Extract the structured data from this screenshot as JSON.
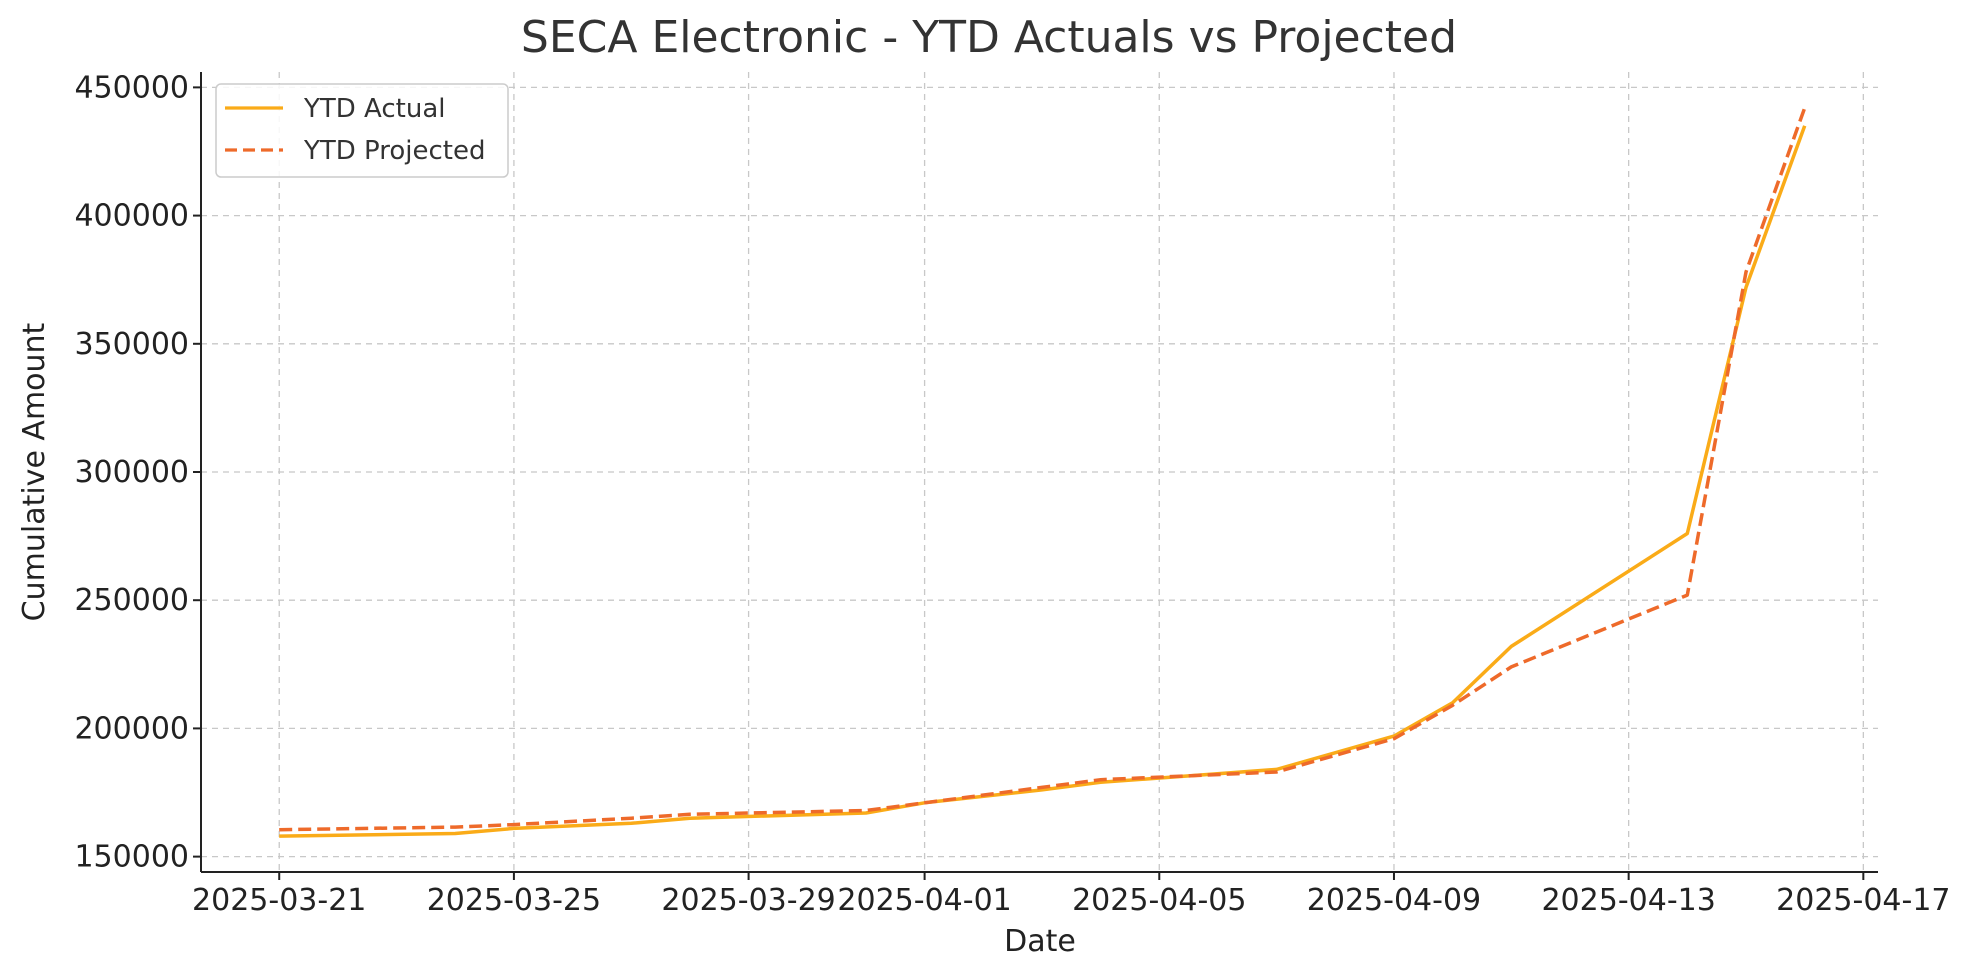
{
  "chart_data": {
    "type": "line",
    "title": "SECA Electronic - YTD Actuals vs Projected",
    "xlabel": "Date",
    "ylabel": "Cumulative Amount",
    "x_tick_labels": [
      "2025-03-21",
      "2025-03-25",
      "2025-03-29",
      "2025-04-01",
      "2025-04-05",
      "2025-04-09",
      "2025-04-13",
      "2025-04-17"
    ],
    "y_tick_labels": [
      "150000",
      "200000",
      "250000",
      "300000",
      "350000",
      "400000",
      "450000"
    ],
    "y_ticks": [
      150000,
      200000,
      250000,
      300000,
      350000,
      400000,
      450000
    ],
    "xlim": [
      "2025-03-19T16:00",
      "2025-04-17T06:00"
    ],
    "ylim": [
      144000,
      456000
    ],
    "grid": true,
    "legend_position": "top-left",
    "x": [
      "2025-03-21",
      "2025-03-24",
      "2025-03-25",
      "2025-03-27",
      "2025-03-28",
      "2025-03-31",
      "2025-04-01",
      "2025-04-03",
      "2025-04-04",
      "2025-04-07",
      "2025-04-09",
      "2025-04-10",
      "2025-04-11",
      "2025-04-14",
      "2025-04-15",
      "2025-04-16"
    ],
    "series": [
      {
        "name": "YTD Actual",
        "style": "solid",
        "color": "#FAAB18",
        "values": [
          158000,
          159000,
          161000,
          163000,
          165000,
          167000,
          171000,
          176000,
          179000,
          184000,
          197000,
          210000,
          232000,
          276000,
          372000,
          435000
        ]
      },
      {
        "name": "YTD Projected",
        "style": "dashed",
        "color": "#EE6A2A",
        "values": [
          160500,
          161500,
          162500,
          165000,
          166500,
          168000,
          171000,
          177000,
          180000,
          183000,
          196000,
          209000,
          224000,
          252000,
          378000,
          442000
        ]
      }
    ]
  }
}
